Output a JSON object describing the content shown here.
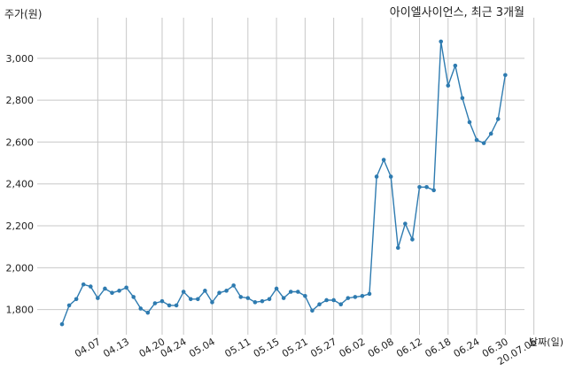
{
  "chart_data": {
    "type": "line",
    "title": "아이엘사이언스, 최근 3개월",
    "ylabel": "주가(원)",
    "xlabel": "날짜(일)",
    "ylim": [
      1680,
      3160
    ],
    "yticks": [
      1800,
      2000,
      2200,
      2400,
      2600,
      2800,
      3000
    ],
    "ytick_labels": [
      "1,800",
      "2,000",
      "2,200",
      "2,400",
      "2,600",
      "2,800",
      "3,000"
    ],
    "xticks": [
      {
        "index": 5,
        "label": "04.07"
      },
      {
        "index": 9,
        "label": "04.13"
      },
      {
        "index": 14,
        "label": "04.20"
      },
      {
        "index": 17,
        "label": "04.24"
      },
      {
        "index": 21,
        "label": "05.04"
      },
      {
        "index": 26,
        "label": "05.11"
      },
      {
        "index": 30,
        "label": "05.15"
      },
      {
        "index": 34,
        "label": "05.21"
      },
      {
        "index": 38,
        "label": "05.27"
      },
      {
        "index": 42,
        "label": "06.02"
      },
      {
        "index": 46,
        "label": "06.08"
      },
      {
        "index": 50,
        "label": "06.12"
      },
      {
        "index": 54,
        "label": "06.18"
      },
      {
        "index": 58,
        "label": "06.24"
      },
      {
        "index": 62,
        "label": "06.30"
      },
      {
        "index": 66,
        "label": "20.07.06"
      }
    ],
    "grid": true,
    "series": [
      {
        "color": "#2e7bb0",
        "values": [
          1730,
          1820,
          1850,
          1920,
          1910,
          1855,
          1900,
          1880,
          1890,
          1905,
          1860,
          1805,
          1785,
          1830,
          1840,
          1820,
          1820,
          1885,
          1850,
          1850,
          1890,
          1835,
          1880,
          1890,
          1915,
          1860,
          1855,
          1835,
          1840,
          1850,
          1900,
          1855,
          1885,
          1885,
          1865,
          1795,
          1825,
          1845,
          1845,
          1825,
          1855,
          1860,
          1865,
          1875,
          2435,
          2515,
          2435,
          2095,
          2210,
          2135,
          2385,
          2385,
          2370,
          3080,
          2870,
          2965,
          2810,
          2695,
          2610,
          2595,
          2640,
          2710,
          2920
        ]
      }
    ]
  }
}
